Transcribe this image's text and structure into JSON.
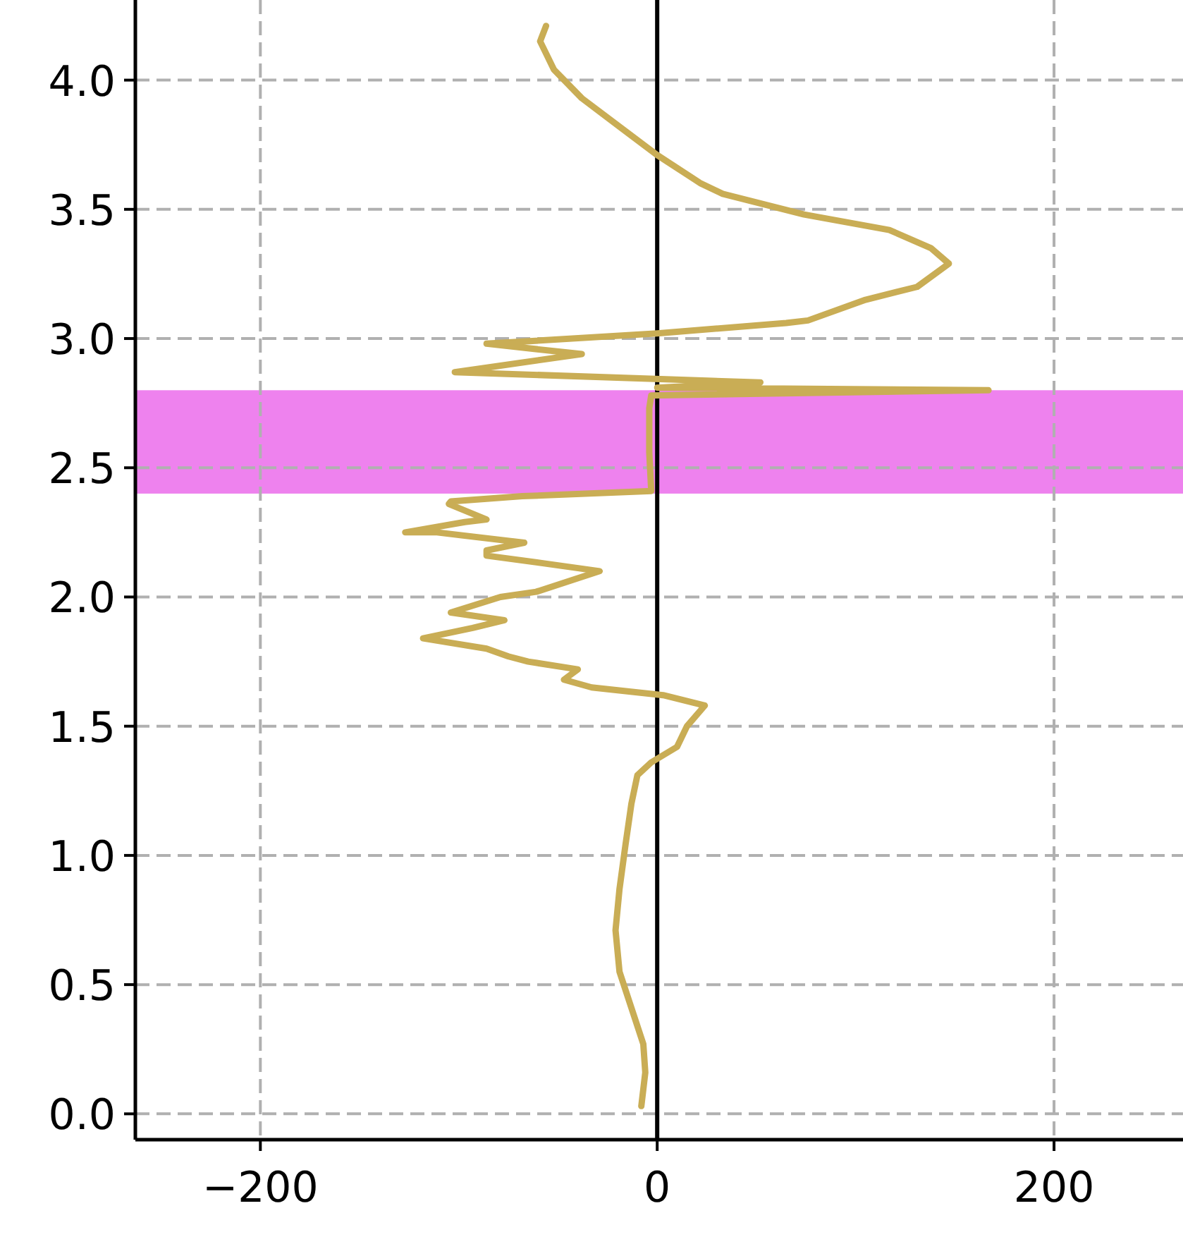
{
  "chart_data": {
    "type": "line",
    "xlim": [
      -263,
      265
    ],
    "ylim": [
      -0.1,
      4.31
    ],
    "xticks": [
      -200,
      0,
      200
    ],
    "yticks": [
      {
        "value": 0,
        "label": "0.0"
      },
      {
        "value": 0.5,
        "label": "0.5"
      },
      {
        "value": 1,
        "label": "1.0"
      },
      {
        "value": 1.5,
        "label": "1.5"
      },
      {
        "value": 2,
        "label": "2.0"
      },
      {
        "value": 2.5,
        "label": "2.5"
      },
      {
        "value": 3,
        "label": "3.0"
      },
      {
        "value": 3.5,
        "label": "3.5"
      },
      {
        "value": 4,
        "label": "4.0"
      }
    ],
    "grid": true,
    "marker": "none",
    "line_style": "solid",
    "ref_lines": [
      {
        "axis": "x",
        "value": 0,
        "color": "#000000"
      }
    ],
    "bands": [
      {
        "axis": "y",
        "from": 2.4,
        "to": 2.8,
        "color": "#ee82ee"
      }
    ],
    "series": [
      {
        "color": "#c9ad55",
        "x": [
          -8,
          -6,
          -7,
          -13,
          -19,
          -21,
          -19,
          -16,
          -13,
          -10,
          -3,
          10,
          15,
          24,
          3,
          -33,
          -47,
          -40,
          -65,
          -75,
          -86,
          -118,
          -93,
          -77,
          -104,
          -79,
          -61,
          -29,
          -57,
          -86,
          -86,
          -67,
          -111,
          -127,
          -97,
          -86,
          -105,
          -104,
          -68,
          -3,
          -4,
          -4,
          -3,
          167,
          0,
          52,
          -102,
          -38,
          -86,
          0,
          65,
          76,
          105,
          131,
          147,
          138,
          117,
          74,
          33,
          22,
          0,
          -19,
          -38,
          -52,
          -59,
          -56
        ],
        "values": [
          0.03,
          0.16,
          0.27,
          0.41,
          0.55,
          0.71,
          0.87,
          1.04,
          1.2,
          1.31,
          1.36,
          1.42,
          1.5,
          1.58,
          1.62,
          1.65,
          1.68,
          1.72,
          1.75,
          1.77,
          1.8,
          1.84,
          1.88,
          1.91,
          1.94,
          2.0,
          2.02,
          2.1,
          2.13,
          2.16,
          2.18,
          2.21,
          2.25,
          2.25,
          2.29,
          2.3,
          2.36,
          2.37,
          2.39,
          2.41,
          2.56,
          2.73,
          2.78,
          2.8,
          2.81,
          2.83,
          2.87,
          2.94,
          2.98,
          3.02,
          3.06,
          3.07,
          3.15,
          3.2,
          3.29,
          3.35,
          3.42,
          3.48,
          3.56,
          3.6,
          3.71,
          3.82,
          3.93,
          4.04,
          4.15,
          4.21
        ]
      }
    ]
  }
}
